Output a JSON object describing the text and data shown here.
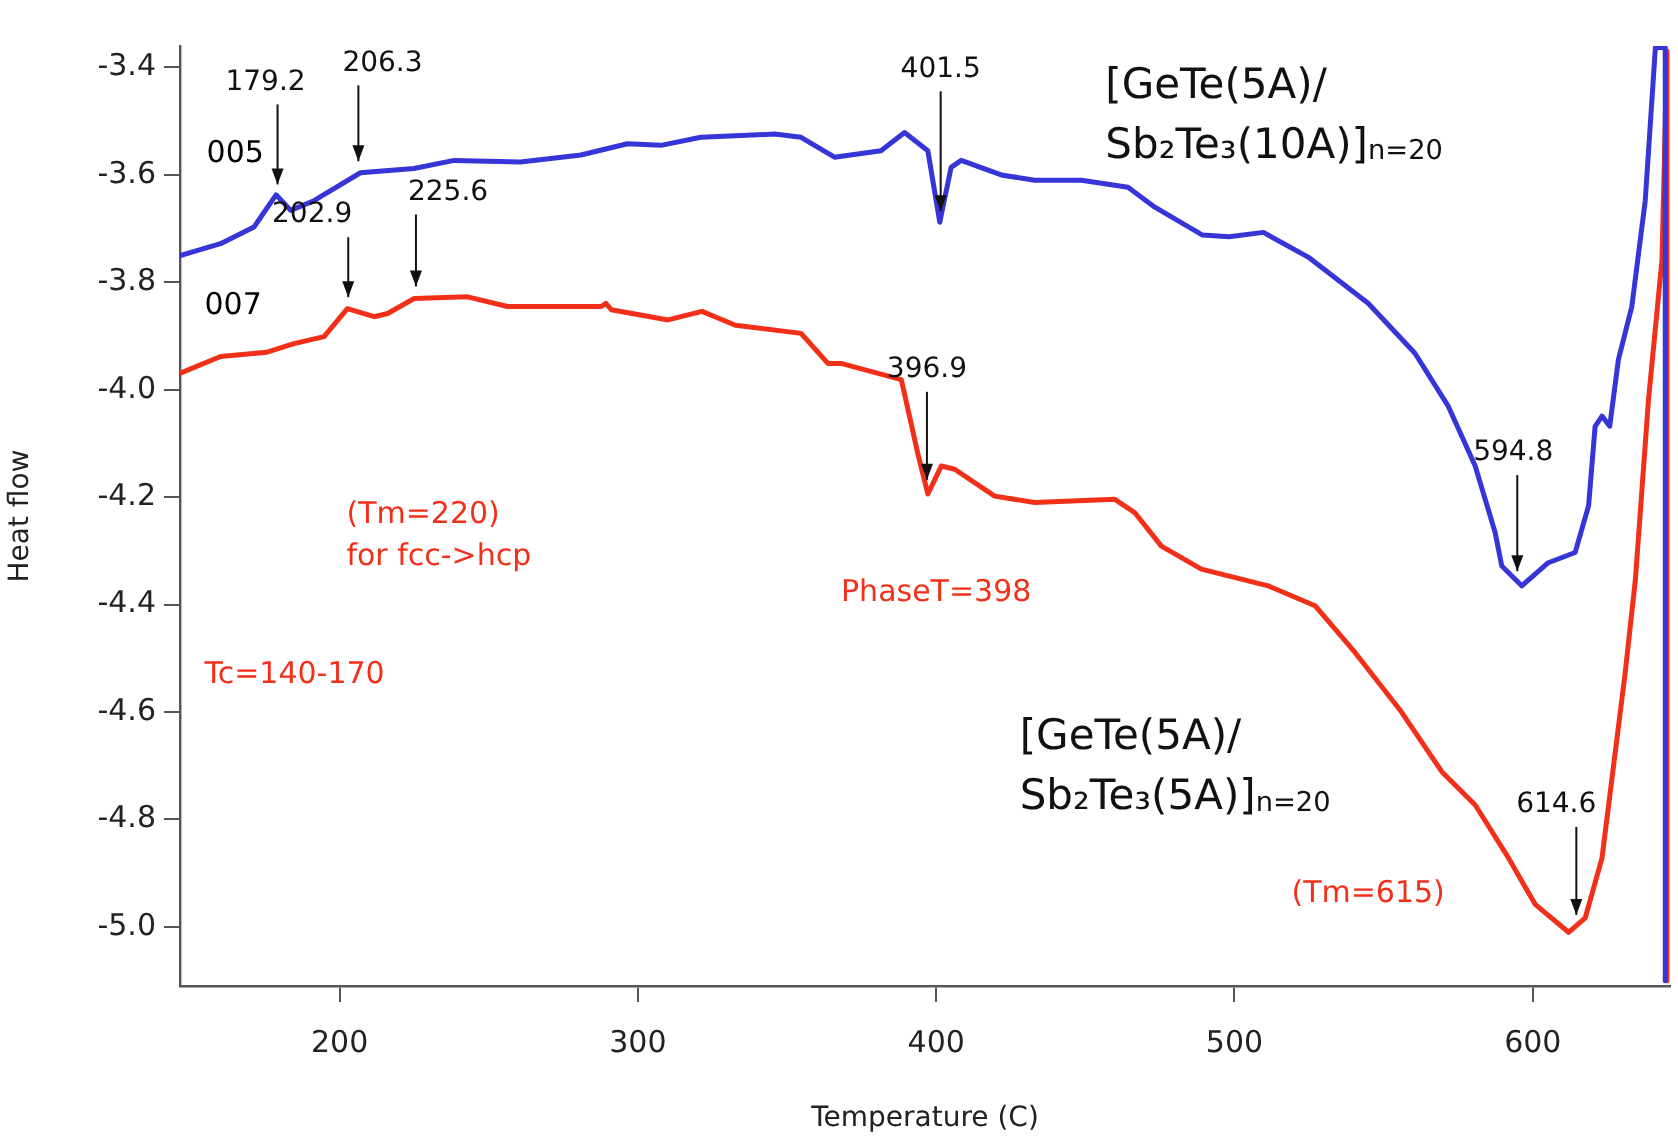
{
  "chart_data": {
    "type": "line",
    "xlabel": "Temperature (C)",
    "ylabel": "Heat flow",
    "xlim": [
      146.5,
      646
    ],
    "xticks": [
      200,
      300,
      400,
      500,
      600
    ],
    "ylim": [
      -5.11,
      -3.36
    ],
    "yticks": [
      -3.4,
      -3.6,
      -3.8,
      {
        "value": -4,
        "label": "-4.0"
      },
      -4.2,
      -4.4,
      -4.6,
      -4.8,
      {
        "value": -5,
        "label": "-5.0"
      }
    ],
    "grid": false,
    "legend": false,
    "marker": "none",
    "line_style": "solid",
    "series": [
      {
        "name": "[GeTe(5A)/\nSb₂Te₃(10A)]$_{n=20}$",
        "color": "#3535d8",
        "x": [
          146.6,
          160.1,
          171.3,
          178.7,
          183.6,
          191.4,
          207,
          224.9,
          238.4,
          260.7,
          280.9,
          296.5,
          307.7,
          321.1,
          345.8,
          354.7,
          365.9,
          381.5,
          389.4,
          397.2,
          401.2,
          405,
          408.4,
          421.8,
          433,
          448.7,
          464.3,
          473.3,
          489.3,
          498.2,
          509.7,
          524.7,
          544.8,
          560.5,
          571.7,
          580.7,
          587.4,
          589.6,
          596.3,
          605.2,
          614.2,
          618.7,
          620.9,
          623.2,
          625.8,
          628.7,
          633.2,
          637.7,
          641.1,
          644.4,
          644.4
        ],
        "values": [
          -3.75,
          -3.728,
          -3.697,
          -3.637,
          -3.666,
          -3.648,
          -3.596,
          -3.588,
          -3.573,
          -3.576,
          -3.563,
          -3.542,
          -3.545,
          -3.53,
          -3.524,
          -3.53,
          -3.567,
          -3.555,
          -3.521,
          -3.555,
          -3.688,
          -3.586,
          -3.573,
          -3.6,
          -3.61,
          -3.61,
          -3.623,
          -3.66,
          -3.712,
          -3.715,
          -3.707,
          -3.753,
          -3.839,
          -3.932,
          -4.031,
          -4.142,
          -4.266,
          -4.328,
          -4.365,
          -4.322,
          -4.303,
          -4.216,
          -4.068,
          -4.049,
          -4.068,
          -3.944,
          -3.845,
          -3.648,
          -3.363,
          -3.363,
          -5.1
        ]
      },
      {
        "name": "[GeTe(5A)/\nSb₂Te₃(5A)]$_{n=20}$",
        "color": "#f2301a",
        "x": [
          146.6,
          160.1,
          175.7,
          184.7,
          194.8,
          202.6,
          211.6,
          216.1,
          225,
          242.9,
          256.3,
          287.7,
          289.3,
          291.1,
          310.1,
          321.5,
          332.7,
          354.7,
          363.7,
          368.1,
          388.3,
          393.8,
          397.2,
          401.7,
          406.2,
          419.6,
          433,
          459.9,
          466.6,
          475.5,
          488.9,
          511.3,
          527,
          540.4,
          556,
          569.5,
          580.7,
          591.9,
          600.8,
          612,
          617.6,
          623.2,
          631,
          634.4,
          638.8,
          643.3,
          645,
          645
        ],
        "values": [
          -3.969,
          -3.938,
          -3.93,
          -3.914,
          -3.901,
          -3.849,
          -3.864,
          -3.858,
          -3.83,
          -3.827,
          -3.845,
          -3.845,
          -3.839,
          -3.851,
          -3.87,
          -3.854,
          -3.88,
          -3.895,
          -3.951,
          -3.951,
          -3.981,
          -4.118,
          -4.194,
          -4.142,
          -4.148,
          -4.198,
          -4.21,
          -4.204,
          -4.229,
          -4.291,
          -4.334,
          -4.365,
          -4.402,
          -4.489,
          -4.6,
          -4.711,
          -4.773,
          -4.872,
          -4.958,
          -5.01,
          -4.983,
          -4.872,
          -4.526,
          -4.353,
          -4.018,
          -3.759,
          -3.37,
          -5.1
        ]
      }
    ],
    "annotations": [
      "005",
      "007",
      "(Tm=220)\nfor fcc->hcp",
      "Tc=140-170",
      "PhaseT=398",
      "(Tm=615)",
      {
        "text": "179.2",
        "x": 179.2,
        "y": -3.64
      },
      {
        "text": "206.3",
        "x": 206.3,
        "y": -3.597
      },
      {
        "text": "202.9",
        "x": 202.9,
        "y": -3.85
      },
      {
        "text": "225.6",
        "x": 225.6,
        "y": -3.83
      },
      {
        "text": "401.5",
        "x": 401.5,
        "y": -3.69
      },
      {
        "text": "396.9",
        "x": 396.9,
        "y": -4.19
      },
      {
        "text": "594.8",
        "x": 594.8,
        "y": -4.36
      },
      {
        "text": "614.6",
        "x": 614.6,
        "y": -5.0
      }
    ]
  }
}
